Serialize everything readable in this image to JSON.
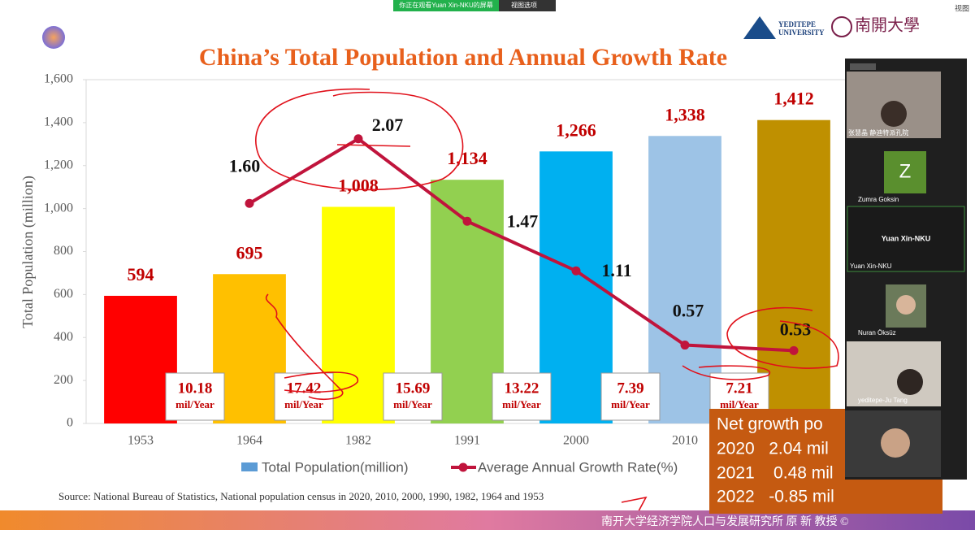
{
  "top_bar": {
    "sharing_notice": "你正在观看Yuan Xin-NKU的屏幕",
    "view_options": "视图选项",
    "view": "视图"
  },
  "logos": {
    "yeditepe": [
      "YEDITEPE",
      "UNIVERSITY"
    ],
    "nankai": "南開大學"
  },
  "chart_data": {
    "type": "bar",
    "title": "China’s Total Population and Annual Growth Rate",
    "y_label": "Total Population (million)",
    "categories": [
      "1953",
      "1964",
      "1982",
      "1991",
      "2000",
      "2010",
      null
    ],
    "series": [
      {
        "name": "Total Population(million)",
        "type": "bar",
        "color": "#5b9bd5",
        "colors": [
          "#ff0000",
          "#ffc000",
          "#ffff00",
          "#92d050",
          "#00b0f0",
          "#9dc3e6",
          "#bf9000"
        ],
        "values": [
          594,
          695,
          1008,
          1134,
          1266,
          1338,
          1412
        ],
        "value_labels": [
          "594",
          "695",
          "1,008",
          "1,134",
          "1,266",
          "1,338",
          "1,412"
        ]
      },
      {
        "name": "Average Annual Growth Rate(%)",
        "type": "line",
        "axis": "y2",
        "color": "#c0143c",
        "values": [
          null,
          1.6,
          2.07,
          1.47,
          1.11,
          0.57,
          0.53
        ],
        "value_labels": [
          null,
          "1.60",
          "2.07",
          "1.47",
          "1.11",
          "0.57",
          "0.53"
        ]
      }
    ],
    "ylim": [
      0,
      1600
    ],
    "yticks": [
      0,
      200,
      400,
      600,
      800,
      {
        "value": 1000,
        "label": "1,000"
      },
      {
        "value": 1200,
        "label": "1,200"
      },
      {
        "value": 1400,
        "label": "1,400"
      },
      {
        "value": 1600,
        "label": "1,600"
      }
    ],
    "y2lim": [
      0,
      2.5
    ],
    "annotations": [
      {
        "value": "10.18",
        "unit": "mil/Year"
      },
      {
        "value": "17.42",
        "unit": "mil/Year"
      },
      {
        "value": "15.69",
        "unit": "mil/Year"
      },
      {
        "value": "13.22",
        "unit": "mil/Year"
      },
      {
        "value": "7.39",
        "unit": "mil/Year"
      },
      {
        "value": "7.21",
        "unit": "mil/Year"
      }
    ],
    "source": "Source: National Bureau of Statistics, National population census in 2020, 2010, 2000, 1990, 1982, 1964  and 1953"
  },
  "growth_box": {
    "heading": "Net growth po",
    "rows": [
      "2020   2.04 mil",
      "2021    0.48 mil",
      "2022   -0.85 mil"
    ]
  },
  "participants": [
    {
      "name": "张慧晶 静迪特派孔院"
    },
    {
      "initial": "Z",
      "name": "Zumra Goksin"
    },
    {
      "center": "Yuan Xin-NKU",
      "name": "Yuan Xin-NKU"
    },
    {
      "name": "Nuran Öksüz"
    },
    {
      "name": "yeditepe-Ju Tang"
    }
  ],
  "footer": "南开大学经济学院人口与发展研究所 原 新 教授 ©"
}
